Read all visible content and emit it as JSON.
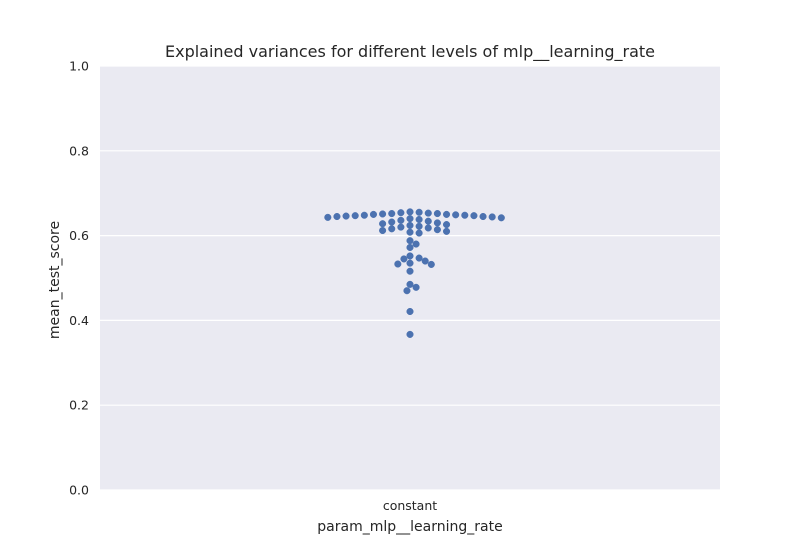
{
  "chart_data": {
    "type": "scatter",
    "subtype": "swarm",
    "title": "Explained variances for different levels of mlp__learning_rate",
    "xlabel": "param_mlp__learning_rate",
    "ylabel": "mean_test_score",
    "categories": [
      "constant"
    ],
    "ylim": [
      0.0,
      1.0
    ],
    "yticks": [
      "0.0",
      "0.2",
      "0.4",
      "0.6",
      "0.8",
      "1.0"
    ],
    "grid": true,
    "background": "#eaeaf2",
    "point_color": "#4c72b0",
    "series": [
      {
        "category": "constant",
        "values": [
          0.656,
          0.655,
          0.654,
          0.653,
          0.652,
          0.652,
          0.651,
          0.65,
          0.65,
          0.649,
          0.648,
          0.648,
          0.647,
          0.647,
          0.646,
          0.645,
          0.645,
          0.644,
          0.643,
          0.642,
          0.64,
          0.638,
          0.636,
          0.634,
          0.632,
          0.63,
          0.628,
          0.626,
          0.624,
          0.622,
          0.62,
          0.618,
          0.616,
          0.614,
          0.612,
          0.61,
          0.608,
          0.606,
          0.588,
          0.58,
          0.572,
          0.552,
          0.547,
          0.545,
          0.54,
          0.535,
          0.533,
          0.532,
          0.516,
          0.485,
          0.478,
          0.47,
          0.421,
          0.367
        ]
      }
    ]
  }
}
